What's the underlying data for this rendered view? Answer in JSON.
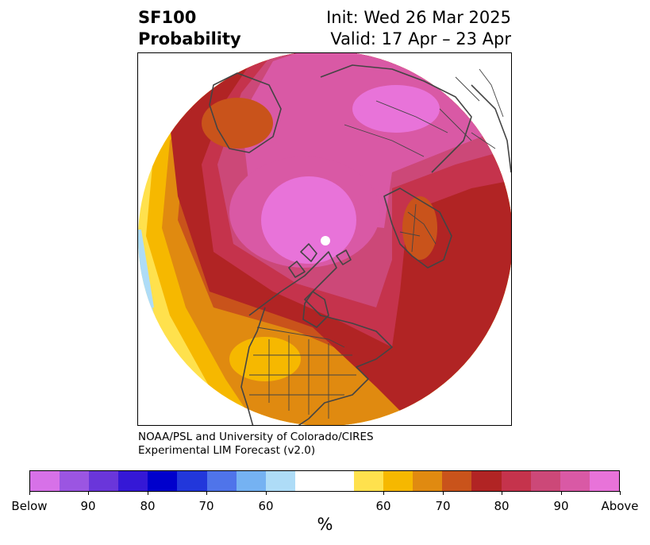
{
  "title": {
    "line1_left": "SF100",
    "line2_left": "Probability",
    "line1_right": "Init: Wed 26 Mar 2025",
    "line2_right": "Valid: 17 Apr – 23 Apr"
  },
  "credit": {
    "line1": "NOAA/PSL and University of Colorado/CIRES",
    "line2": "Experimental LIM Forecast (v2.0)"
  },
  "colorbar": {
    "unit": "%",
    "colors": [
      "#d771e8",
      "#9b55e2",
      "#6a36da",
      "#3518d6",
      "#0000cc",
      "#2237db",
      "#4f74ea",
      "#75b2f2",
      "#aedcf7",
      "#ffffff",
      "#ffffff",
      "#ffe14d",
      "#f6b800",
      "#e08a10",
      "#c9531b",
      "#b12424",
      "#c5334c",
      "#cc4878",
      "#d959a5",
      "#e873d9"
    ],
    "tick_labels": [
      {
        "index": 0,
        "label": "Below"
      },
      {
        "index": 2,
        "label": "90"
      },
      {
        "index": 4,
        "label": "80"
      },
      {
        "index": 6,
        "label": "70"
      },
      {
        "index": 8,
        "label": "60"
      },
      {
        "index": 12,
        "label": "60"
      },
      {
        "index": 14,
        "label": "70"
      },
      {
        "index": 16,
        "label": "80"
      },
      {
        "index": 18,
        "label": "90"
      },
      {
        "index": 20,
        "label": "Above"
      }
    ]
  },
  "map": {
    "projection": "north-polar-stereographic",
    "features": [
      "probability-shading",
      "coastlines",
      "country-borders",
      "us-state-borders"
    ],
    "palette": {
      "above_90_plus": "#e873d9",
      "above_90": "#d959a5",
      "above_85": "#cc4878",
      "above_80": "#c5334c",
      "above_75": "#b12424",
      "above_70": "#c9531b",
      "above_65": "#e08a10",
      "above_60": "#f6b800",
      "above_55": "#ffe14d",
      "below_60": "#aedcf7",
      "border": "#444444"
    }
  }
}
